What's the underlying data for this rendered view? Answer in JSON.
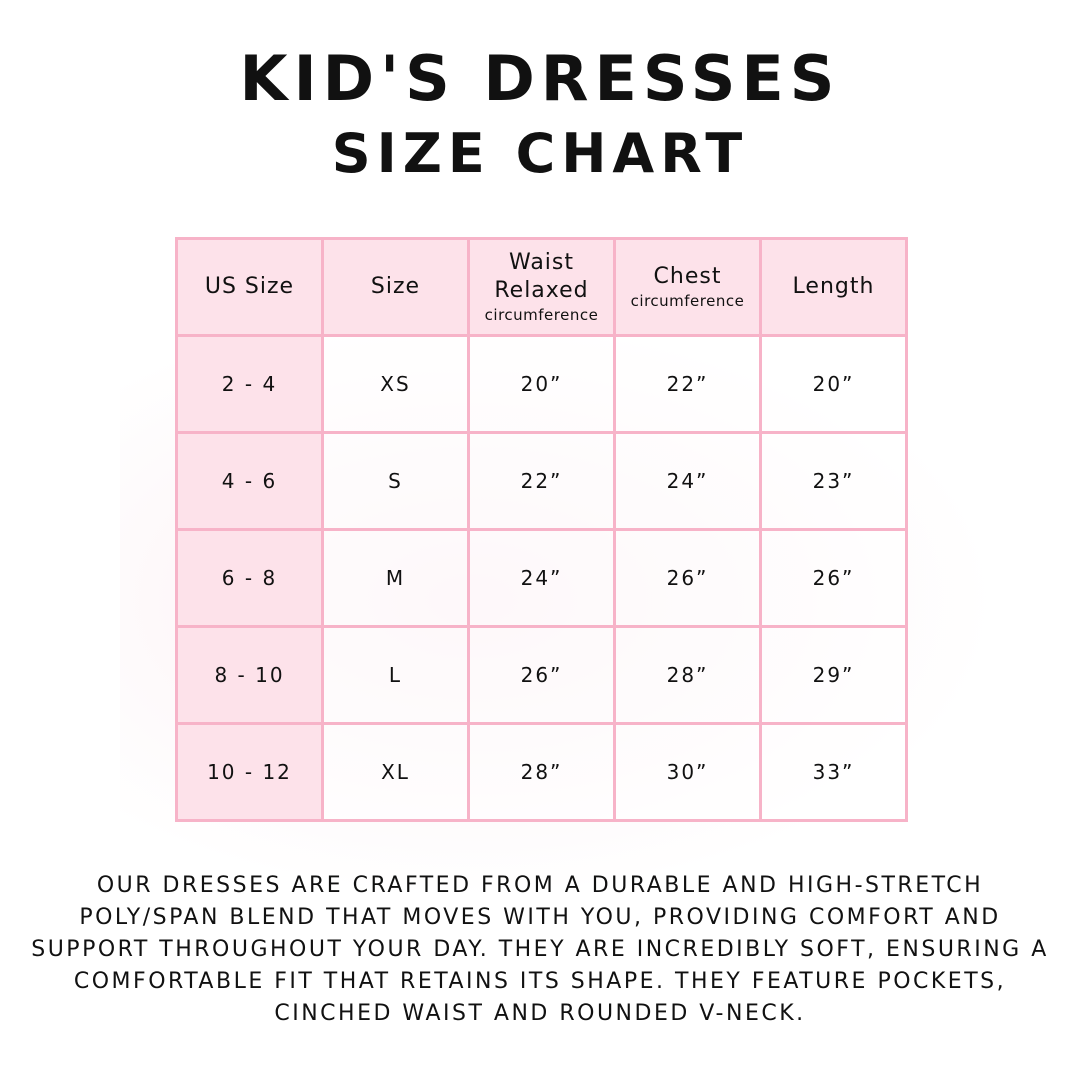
{
  "title_line1": "Kid's Dresses",
  "title_line2": "Size Chart",
  "table": {
    "headers": [
      {
        "main": "US Size",
        "sub": ""
      },
      {
        "main": "Size",
        "sub": ""
      },
      {
        "main": "Waist Relaxed",
        "sub": "circumference"
      },
      {
        "main": "Chest",
        "sub": "circumference"
      },
      {
        "main": "Length",
        "sub": ""
      }
    ],
    "rows": [
      [
        "2 - 4",
        "XS",
        "20”",
        "22”",
        "20”"
      ],
      [
        "4 - 6",
        "S",
        "22”",
        "24”",
        "23”"
      ],
      [
        "6 - 8",
        "M",
        "24”",
        "26”",
        "26”"
      ],
      [
        "8 - 10",
        "L",
        "26”",
        "28”",
        "29”"
      ],
      [
        "10 - 12",
        "XL",
        "28”",
        "30”",
        "33”"
      ]
    ]
  },
  "description": "Our dresses are crafted from a durable and high-stretch poly/span blend that moves with you, providing comfort and support throughout your day. They are incredibly soft, ensuring a comfortable fit that retains its shape. They feature pockets, cinched waist and rounded V-neck.",
  "colors": {
    "header_bg": "#fde2ea",
    "border": "#f7b3c8"
  }
}
